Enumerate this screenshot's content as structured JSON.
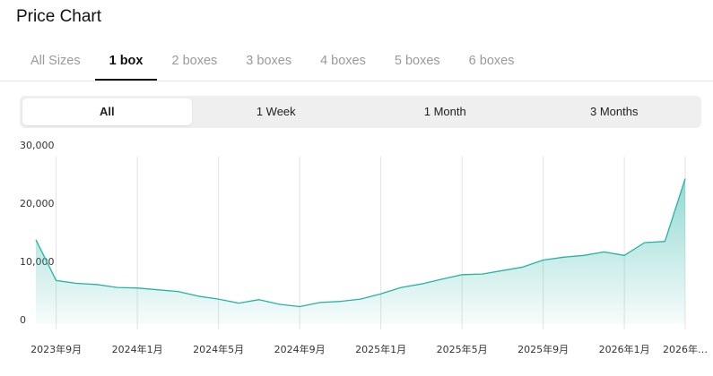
{
  "header": {
    "title": "Price Chart"
  },
  "size_tabs": {
    "items": [
      "All Sizes",
      "1 box",
      "2 boxes",
      "3 boxes",
      "4 boxes",
      "5 boxes",
      "6 boxes"
    ],
    "selected": 1
  },
  "period_tabs": {
    "items": [
      "All",
      "1 Week",
      "1 Month",
      "3 Months"
    ],
    "selected": 0
  },
  "chart_data": {
    "type": "line",
    "color": "#26b3a6",
    "area": true,
    "grid": "x",
    "x": [
      "2023-08",
      "2023-09",
      "2023-10",
      "2023-11",
      "2023-12",
      "2024-01",
      "2024-02",
      "2024-03",
      "2024-04",
      "2024-05",
      "2024-06",
      "2024-07",
      "2024-08",
      "2024-09",
      "2024-10",
      "2024-11",
      "2024-12",
      "2025-01",
      "2025-02",
      "2025-03",
      "2025-04",
      "2025-05",
      "2025-06",
      "2025-07",
      "2025-08",
      "2025-09",
      "2025-10",
      "2025-11",
      "2025-12",
      "2026-01",
      "2026-02",
      "2026-03",
      "2026-04"
    ],
    "values": [
      14500,
      7500,
      7000,
      6800,
      6300,
      6200,
      5900,
      5600,
      4800,
      4300,
      3600,
      4200,
      3400,
      3000,
      3700,
      3900,
      4300,
      5200,
      6300,
      6900,
      7700,
      8500,
      8600,
      9200,
      9800,
      11000,
      11500,
      11800,
      12400,
      11800,
      14000,
      14200,
      25000
    ],
    "xlim": [
      "2023-08",
      "2026-04"
    ],
    "xticks": [
      {
        "value": "2023-09",
        "label": "2023年9月"
      },
      {
        "value": "2024-01",
        "label": "2024年1月"
      },
      {
        "value": "2024-05",
        "label": "2024年5月"
      },
      {
        "value": "2024-09",
        "label": "2024年9月"
      },
      {
        "value": "2025-01",
        "label": "2025年1月"
      },
      {
        "value": "2025-05",
        "label": "2025年5月"
      },
      {
        "value": "2025-09",
        "label": "2025年9月"
      },
      {
        "value": "2026-01",
        "label": "2026年1月"
      },
      {
        "value": "2026-04",
        "label": "2026年…"
      }
    ],
    "ylim": [
      0,
      30000
    ],
    "yticks": [
      0,
      {
        "value": 10000,
        "label": "10,000"
      },
      {
        "value": 20000,
        "label": "20,000"
      },
      {
        "value": 30000,
        "label": "30,000"
      }
    ]
  }
}
